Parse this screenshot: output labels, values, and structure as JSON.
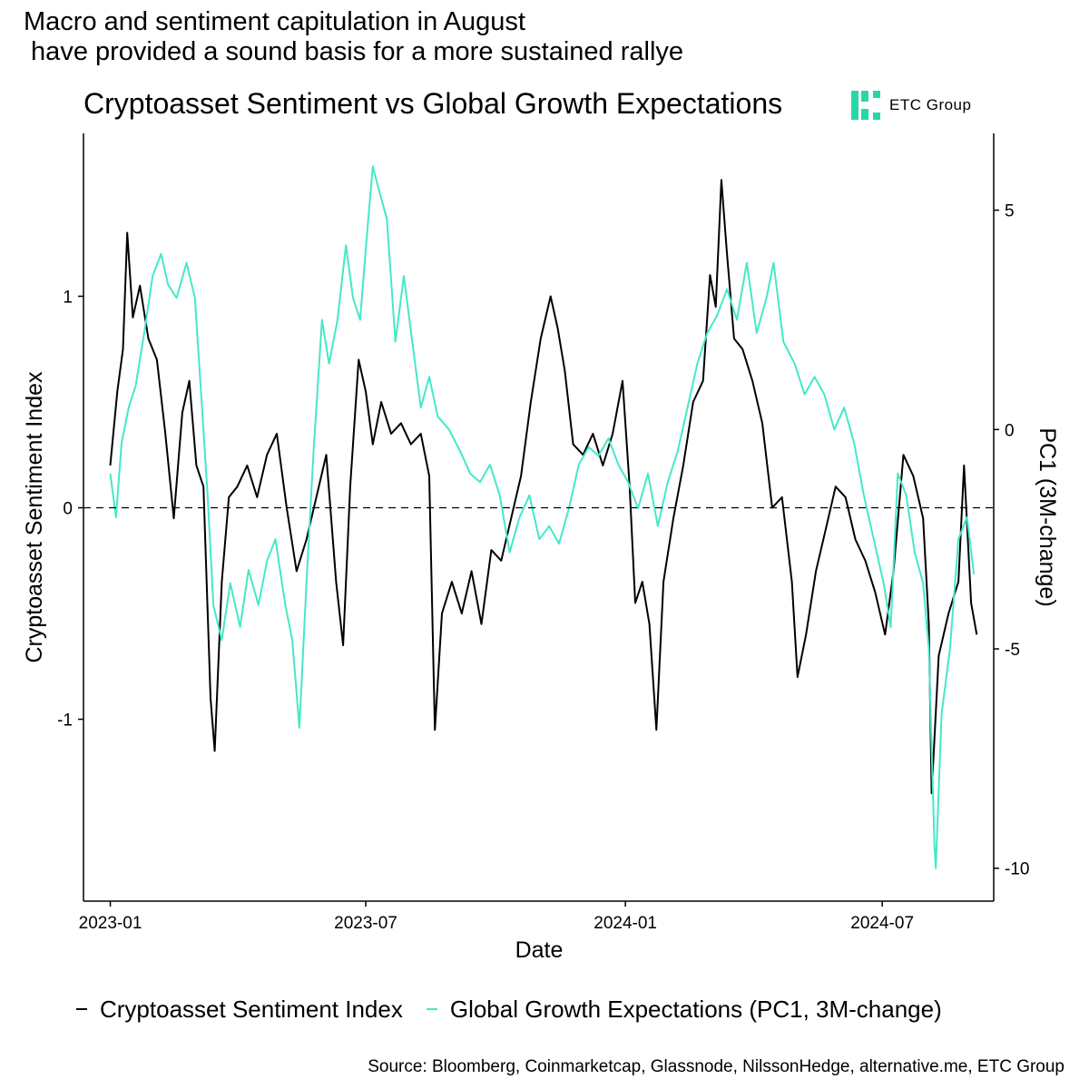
{
  "headline": "Macro and sentiment capitulation in August\n have provided a sound basis for a more sustained rallye",
  "logo": {
    "text": "ETC Group",
    "icon": "etc-group-logo-icon",
    "color": "#27d8a7"
  },
  "source": "Source: Bloomberg, Coinmarketcap, Glassnode, NilssonHedge, alternative.me, ETC Group",
  "chart_data": {
    "type": "line",
    "title": "Cryptoasset Sentiment vs Global Growth Expectations",
    "xlabel": "Date",
    "ylabel": "Cryptoasset Sentiment Index",
    "y2label": "PC1 (3M-change)",
    "x_range": [
      "2022-12-13",
      "2024-09-18"
    ],
    "x_ticks": [
      "2023-01",
      "2023-07",
      "2024-01",
      "2024-07"
    ],
    "ylim": [
      -1.86,
      1.77
    ],
    "y_ticks": [
      "-1",
      "0",
      "1"
    ],
    "y2lim": [
      -10.75,
      6.75
    ],
    "y2_ticks": [
      "-10",
      "-5",
      "0",
      "5"
    ],
    "reference_line": {
      "y": 0,
      "style": "dashed"
    },
    "grid": false,
    "legend_position": "bottom",
    "series": [
      {
        "name": "Cryptoasset Sentiment Index",
        "axis": "left",
        "color": "#000000",
        "points": [
          [
            "2023-01-01",
            0.2
          ],
          [
            "2023-01-06",
            0.55
          ],
          [
            "2023-01-10",
            0.75
          ],
          [
            "2023-01-13",
            1.3
          ],
          [
            "2023-01-17",
            0.9
          ],
          [
            "2023-01-22",
            1.05
          ],
          [
            "2023-01-28",
            0.8
          ],
          [
            "2023-02-03",
            0.7
          ],
          [
            "2023-02-09",
            0.35
          ],
          [
            "2023-02-15",
            -0.05
          ],
          [
            "2023-02-21",
            0.45
          ],
          [
            "2023-02-26",
            0.6
          ],
          [
            "2023-03-03",
            0.2
          ],
          [
            "2023-03-08",
            0.1
          ],
          [
            "2023-03-13",
            -0.9
          ],
          [
            "2023-03-16",
            -1.15
          ],
          [
            "2023-03-21",
            -0.35
          ],
          [
            "2023-03-26",
            0.05
          ],
          [
            "2023-04-01",
            0.1
          ],
          [
            "2023-04-08",
            0.2
          ],
          [
            "2023-04-15",
            0.05
          ],
          [
            "2023-04-22",
            0.25
          ],
          [
            "2023-04-29",
            0.35
          ],
          [
            "2023-05-06",
            0.0
          ],
          [
            "2023-05-13",
            -0.3
          ],
          [
            "2023-05-20",
            -0.15
          ],
          [
            "2023-05-27",
            0.05
          ],
          [
            "2023-06-03",
            0.25
          ],
          [
            "2023-06-10",
            -0.35
          ],
          [
            "2023-06-15",
            -0.65
          ],
          [
            "2023-06-20",
            0.1
          ],
          [
            "2023-06-26",
            0.7
          ],
          [
            "2023-07-01",
            0.55
          ],
          [
            "2023-07-06",
            0.3
          ],
          [
            "2023-07-12",
            0.5
          ],
          [
            "2023-07-19",
            0.35
          ],
          [
            "2023-07-26",
            0.4
          ],
          [
            "2023-08-02",
            0.3
          ],
          [
            "2023-08-09",
            0.35
          ],
          [
            "2023-08-15",
            0.15
          ],
          [
            "2023-08-19",
            -1.05
          ],
          [
            "2023-08-24",
            -0.5
          ],
          [
            "2023-08-31",
            -0.35
          ],
          [
            "2023-09-07",
            -0.5
          ],
          [
            "2023-09-14",
            -0.3
          ],
          [
            "2023-09-21",
            -0.55
          ],
          [
            "2023-09-28",
            -0.2
          ],
          [
            "2023-10-05",
            -0.25
          ],
          [
            "2023-10-12",
            -0.05
          ],
          [
            "2023-10-19",
            0.15
          ],
          [
            "2023-10-26",
            0.5
          ],
          [
            "2023-11-02",
            0.8
          ],
          [
            "2023-11-09",
            1.0
          ],
          [
            "2023-11-14",
            0.85
          ],
          [
            "2023-11-19",
            0.65
          ],
          [
            "2023-11-25",
            0.3
          ],
          [
            "2023-12-02",
            0.25
          ],
          [
            "2023-12-09",
            0.35
          ],
          [
            "2023-12-16",
            0.2
          ],
          [
            "2023-12-23",
            0.35
          ],
          [
            "2023-12-30",
            0.6
          ],
          [
            "2024-01-04",
            0.1
          ],
          [
            "2024-01-08",
            -0.45
          ],
          [
            "2024-01-13",
            -0.35
          ],
          [
            "2024-01-18",
            -0.55
          ],
          [
            "2024-01-23",
            -1.05
          ],
          [
            "2024-01-28",
            -0.35
          ],
          [
            "2024-02-04",
            -0.05
          ],
          [
            "2024-02-11",
            0.2
          ],
          [
            "2024-02-18",
            0.5
          ],
          [
            "2024-02-25",
            0.6
          ],
          [
            "2024-03-01",
            1.1
          ],
          [
            "2024-03-05",
            0.95
          ],
          [
            "2024-03-09",
            1.55
          ],
          [
            "2024-03-13",
            1.2
          ],
          [
            "2024-03-18",
            0.8
          ],
          [
            "2024-03-24",
            0.75
          ],
          [
            "2024-03-31",
            0.6
          ],
          [
            "2024-04-07",
            0.4
          ],
          [
            "2024-04-14",
            0.0
          ],
          [
            "2024-04-21",
            0.05
          ],
          [
            "2024-04-28",
            -0.35
          ],
          [
            "2024-05-02",
            -0.8
          ],
          [
            "2024-05-08",
            -0.6
          ],
          [
            "2024-05-15",
            -0.3
          ],
          [
            "2024-05-22",
            -0.1
          ],
          [
            "2024-05-29",
            0.1
          ],
          [
            "2024-06-05",
            0.05
          ],
          [
            "2024-06-12",
            -0.15
          ],
          [
            "2024-06-19",
            -0.25
          ],
          [
            "2024-06-26",
            -0.4
          ],
          [
            "2024-07-03",
            -0.6
          ],
          [
            "2024-07-09",
            -0.3
          ],
          [
            "2024-07-16",
            0.25
          ],
          [
            "2024-07-23",
            0.15
          ],
          [
            "2024-07-30",
            -0.05
          ],
          [
            "2024-08-03",
            -0.55
          ],
          [
            "2024-08-05",
            -1.35
          ],
          [
            "2024-08-10",
            -0.7
          ],
          [
            "2024-08-17",
            -0.5
          ],
          [
            "2024-08-24",
            -0.35
          ],
          [
            "2024-08-28",
            0.2
          ],
          [
            "2024-09-02",
            -0.45
          ],
          [
            "2024-09-06",
            -0.6
          ]
        ]
      },
      {
        "name": "Global Growth Expectations (PC1, 3M-change)",
        "axis": "right",
        "color": "#45e8c9",
        "points": [
          [
            "2023-01-01",
            -1.0
          ],
          [
            "2023-01-05",
            -2.0
          ],
          [
            "2023-01-09",
            -0.3
          ],
          [
            "2023-01-14",
            0.5
          ],
          [
            "2023-01-19",
            1.0
          ],
          [
            "2023-01-25",
            2.2
          ],
          [
            "2023-01-31",
            3.5
          ],
          [
            "2023-02-06",
            4.0
          ],
          [
            "2023-02-11",
            3.3
          ],
          [
            "2023-02-17",
            3.0
          ],
          [
            "2023-02-24",
            3.8
          ],
          [
            "2023-03-02",
            3.0
          ],
          [
            "2023-03-07",
            0.5
          ],
          [
            "2023-03-11",
            -1.5
          ],
          [
            "2023-03-15",
            -4.0
          ],
          [
            "2023-03-21",
            -4.8
          ],
          [
            "2023-03-27",
            -3.5
          ],
          [
            "2023-04-03",
            -4.5
          ],
          [
            "2023-04-09",
            -3.2
          ],
          [
            "2023-04-16",
            -4.0
          ],
          [
            "2023-04-22",
            -3.0
          ],
          [
            "2023-04-28",
            -2.5
          ],
          [
            "2023-05-05",
            -4.0
          ],
          [
            "2023-05-10",
            -4.8
          ],
          [
            "2023-05-15",
            -6.8
          ],
          [
            "2023-05-20",
            -3.5
          ],
          [
            "2023-05-25",
            -0.5
          ],
          [
            "2023-05-31",
            2.5
          ],
          [
            "2023-06-05",
            1.5
          ],
          [
            "2023-06-11",
            2.5
          ],
          [
            "2023-06-17",
            4.2
          ],
          [
            "2023-06-22",
            3.0
          ],
          [
            "2023-06-27",
            2.5
          ],
          [
            "2023-07-02",
            4.5
          ],
          [
            "2023-07-06",
            6.0
          ],
          [
            "2023-07-10",
            5.5
          ],
          [
            "2023-07-16",
            4.8
          ],
          [
            "2023-07-22",
            2.0
          ],
          [
            "2023-07-28",
            3.5
          ],
          [
            "2023-08-03",
            2.0
          ],
          [
            "2023-08-09",
            0.5
          ],
          [
            "2023-08-15",
            1.2
          ],
          [
            "2023-08-21",
            0.3
          ],
          [
            "2023-08-29",
            0.0
          ],
          [
            "2023-09-06",
            -0.5
          ],
          [
            "2023-09-13",
            -1.0
          ],
          [
            "2023-09-20",
            -1.2
          ],
          [
            "2023-09-27",
            -0.8
          ],
          [
            "2023-10-04",
            -1.5
          ],
          [
            "2023-10-11",
            -2.8
          ],
          [
            "2023-10-18",
            -2.0
          ],
          [
            "2023-10-25",
            -1.5
          ],
          [
            "2023-11-01",
            -2.5
          ],
          [
            "2023-11-08",
            -2.2
          ],
          [
            "2023-11-15",
            -2.6
          ],
          [
            "2023-11-22",
            -1.8
          ],
          [
            "2023-11-29",
            -0.8
          ],
          [
            "2023-12-06",
            -0.4
          ],
          [
            "2023-12-13",
            -0.6
          ],
          [
            "2023-12-20",
            -0.2
          ],
          [
            "2023-12-27",
            -0.8
          ],
          [
            "2024-01-03",
            -1.2
          ],
          [
            "2024-01-10",
            -1.8
          ],
          [
            "2024-01-17",
            -1.0
          ],
          [
            "2024-01-24",
            -2.2
          ],
          [
            "2024-01-31",
            -1.2
          ],
          [
            "2024-02-07",
            -0.5
          ],
          [
            "2024-02-14",
            0.5
          ],
          [
            "2024-02-21",
            1.5
          ],
          [
            "2024-02-28",
            2.2
          ],
          [
            "2024-03-06",
            2.6
          ],
          [
            "2024-03-13",
            3.2
          ],
          [
            "2024-03-20",
            2.5
          ],
          [
            "2024-03-27",
            3.8
          ],
          [
            "2024-04-03",
            2.2
          ],
          [
            "2024-04-10",
            3.0
          ],
          [
            "2024-04-15",
            3.8
          ],
          [
            "2024-04-22",
            2.0
          ],
          [
            "2024-04-30",
            1.5
          ],
          [
            "2024-05-07",
            0.8
          ],
          [
            "2024-05-14",
            1.2
          ],
          [
            "2024-05-21",
            0.8
          ],
          [
            "2024-05-28",
            0.0
          ],
          [
            "2024-06-04",
            0.5
          ],
          [
            "2024-06-11",
            -0.3
          ],
          [
            "2024-06-18",
            -1.5
          ],
          [
            "2024-06-25",
            -2.5
          ],
          [
            "2024-07-02",
            -3.5
          ],
          [
            "2024-07-07",
            -4.5
          ],
          [
            "2024-07-12",
            -1.0
          ],
          [
            "2024-07-18",
            -1.5
          ],
          [
            "2024-07-24",
            -2.8
          ],
          [
            "2024-07-30",
            -3.5
          ],
          [
            "2024-08-03",
            -5.0
          ],
          [
            "2024-08-07",
            -9.5
          ],
          [
            "2024-08-08",
            -10.0
          ],
          [
            "2024-08-12",
            -6.5
          ],
          [
            "2024-08-18",
            -5.0
          ],
          [
            "2024-08-24",
            -2.5
          ],
          [
            "2024-08-30",
            -2.0
          ],
          [
            "2024-09-04",
            -3.3
          ]
        ]
      }
    ]
  }
}
